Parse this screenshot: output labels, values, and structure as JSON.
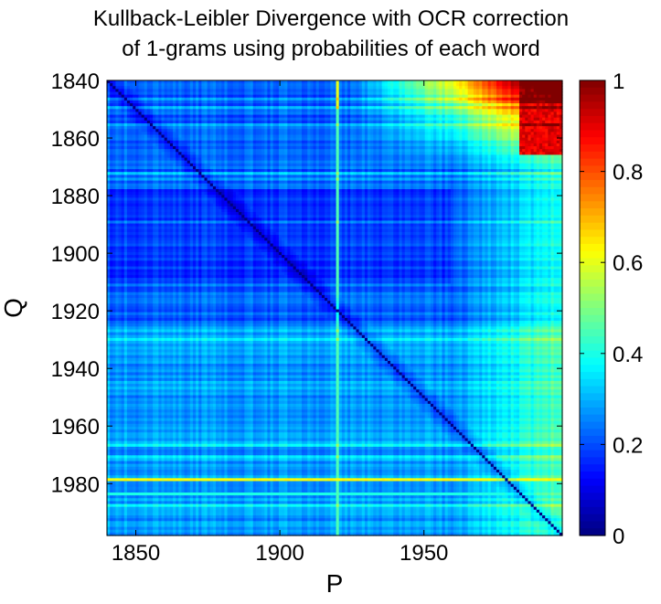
{
  "chart_data": {
    "type": "heatmap",
    "title": "Kullback-Leibler Divergence with OCR correction of 1-grams using probabilities of each word",
    "title_lines": [
      "Kullback-Leibler Divergence with OCR correction",
      "of 1-grams using probabilities of each word"
    ],
    "xlabel": "P",
    "ylabel": "Q",
    "xlim": [
      1840,
      1998
    ],
    "ylim": [
      1840,
      1998
    ],
    "y_axis_reversed": true,
    "x_ticks": [
      1850,
      1900,
      1950
    ],
    "x_tick_labels": [
      "1850",
      "1900",
      "1950"
    ],
    "y_ticks": [
      1840,
      1860,
      1880,
      1900,
      1920,
      1940,
      1960,
      1980
    ],
    "y_tick_labels": [
      "1840",
      "1860",
      "1880",
      "1900",
      "1920",
      "1940",
      "1960",
      "1980"
    ],
    "colorbar": {
      "range": [
        0,
        1
      ],
      "ticks": [
        0,
        0.2,
        0.4,
        0.6,
        0.8,
        1
      ],
      "tick_labels": [
        "0",
        "0.2",
        "0.4",
        "0.6",
        "0.8",
        "1"
      ],
      "colormap": "jet"
    },
    "grid": false,
    "features": {
      "diagonal_value": 0.0,
      "background_value": 0.2,
      "early_rows_late_columns_value": 0.95,
      "bright_row_year": 1979,
      "bright_row_value": 0.6,
      "secondary_row_year": 1984,
      "secondary_row_value": 0.4,
      "bright_column_year": 1920,
      "bright_column_value": 0.45
    }
  }
}
